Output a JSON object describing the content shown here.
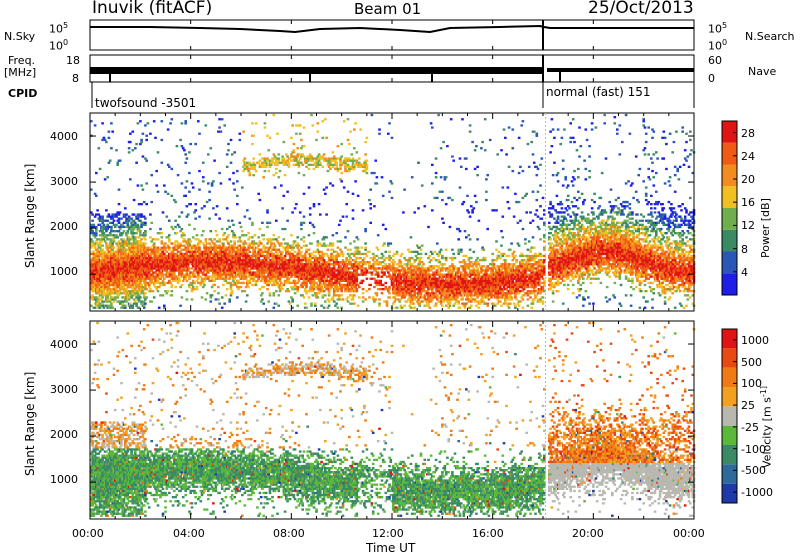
{
  "header": {
    "station": "Inuvik (fitACF)",
    "beam": "Beam 01",
    "date": "25/Oct/2013"
  },
  "top_panels": {
    "nsky_label": "N.Sky",
    "nsky_ticks": [
      "10^5",
      "10^0"
    ],
    "nsearch_label": "N.Search",
    "nsearch_ticks": [
      "10^5",
      "10^0"
    ],
    "freq_label": "Freq.",
    "freq_unit": "[MHz]",
    "freq_ticks": [
      "18",
      "8"
    ],
    "nave_label": "Nave",
    "nave_ticks": [
      "60",
      "0"
    ],
    "cpid_label": "CPID",
    "cpid_segments": [
      "twofsound -3501",
      "normal (fast) 151"
    ]
  },
  "colors": {
    "power": [
      "#1e1ee6",
      "#2a56b8",
      "#3a8a66",
      "#6fae4c",
      "#f0c020",
      "#f28c1e",
      "#f05a14",
      "#e01414"
    ],
    "velocity": [
      "#1e3aa8",
      "#2d6a9a",
      "#3a8a66",
      "#5cb83a",
      "#b8b8b0",
      "#f2a020",
      "#f07a14",
      "#e84a12",
      "#e01414"
    ]
  },
  "chart_data": [
    {
      "type": "heatmap",
      "panel": "power",
      "ylabel": "Slant Range [km]",
      "ylim": [
        200,
        4500
      ],
      "yticks": [
        "1000",
        "2000",
        "3000",
        "4000"
      ],
      "xlabel": "Time UT",
      "xticks": [
        "00:00",
        "04:00",
        "08:00",
        "12:00",
        "16:00",
        "20:00",
        "00:00"
      ],
      "colorbar_label": "Power [dB]",
      "colorbar_ticks": [
        "4",
        "8",
        "12",
        "16",
        "20",
        "24",
        "28"
      ],
      "colorbar_range": [
        0,
        30
      ]
    },
    {
      "type": "heatmap",
      "panel": "velocity",
      "ylabel": "Slant Range [km]",
      "ylim": [
        200,
        4500
      ],
      "yticks": [
        "1000",
        "2000",
        "3000",
        "4000"
      ],
      "xlabel": "Time UT",
      "xticks": [
        "00:00",
        "04:00",
        "08:00",
        "12:00",
        "16:00",
        "20:00",
        "00:00"
      ],
      "colorbar_label": "Velocity [m s^-1]",
      "colorbar_ticks": [
        "1000",
        "500",
        "100",
        "25",
        "-25",
        "-100",
        "-500",
        "-1000"
      ]
    }
  ]
}
